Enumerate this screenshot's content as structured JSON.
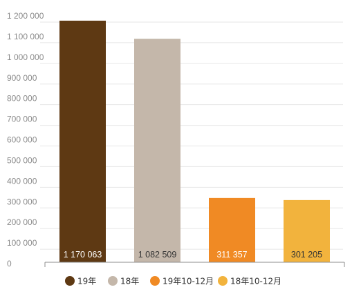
{
  "chart_data": {
    "type": "bar",
    "title": "",
    "xlabel": "",
    "ylabel": "",
    "ylim": [
      0,
      1200000
    ],
    "grid": true,
    "legend_position": "bottom",
    "y_ticks": [
      {
        "value": 0,
        "label": "0"
      },
      {
        "value": 100000,
        "label": "100 000"
      },
      {
        "value": 200000,
        "label": "200 000"
      },
      {
        "value": 300000,
        "label": "300 000"
      },
      {
        "value": 400000,
        "label": "400 000"
      },
      {
        "value": 500000,
        "label": "500 000"
      },
      {
        "value": 600000,
        "label": "600 000"
      },
      {
        "value": 700000,
        "label": "700 000"
      },
      {
        "value": 800000,
        "label": "800 000"
      },
      {
        "value": 900000,
        "label": "900 000"
      },
      {
        "value": 1000000,
        "label": "1 000 000"
      },
      {
        "value": 1100000,
        "label": "1 100 000"
      },
      {
        "value": 1200000,
        "label": "1 200 000"
      }
    ],
    "bars": [
      {
        "name": "19年",
        "value": 1170063,
        "label": "1 170 063",
        "color": "#5e3913",
        "label_color": "#ffffff"
      },
      {
        "name": "18年",
        "value": 1082509,
        "label": "1 082 509",
        "color": "#c4b7aa",
        "label_color": "#333333"
      },
      {
        "name": "19年10-12月",
        "value": 311357,
        "label": "311 357",
        "color": "#f08a24",
        "label_color": "#ffffff"
      },
      {
        "name": "18年10-12月",
        "value": 301205,
        "label": "301 205",
        "color": "#f2b33d",
        "label_color": "#333333"
      }
    ]
  }
}
